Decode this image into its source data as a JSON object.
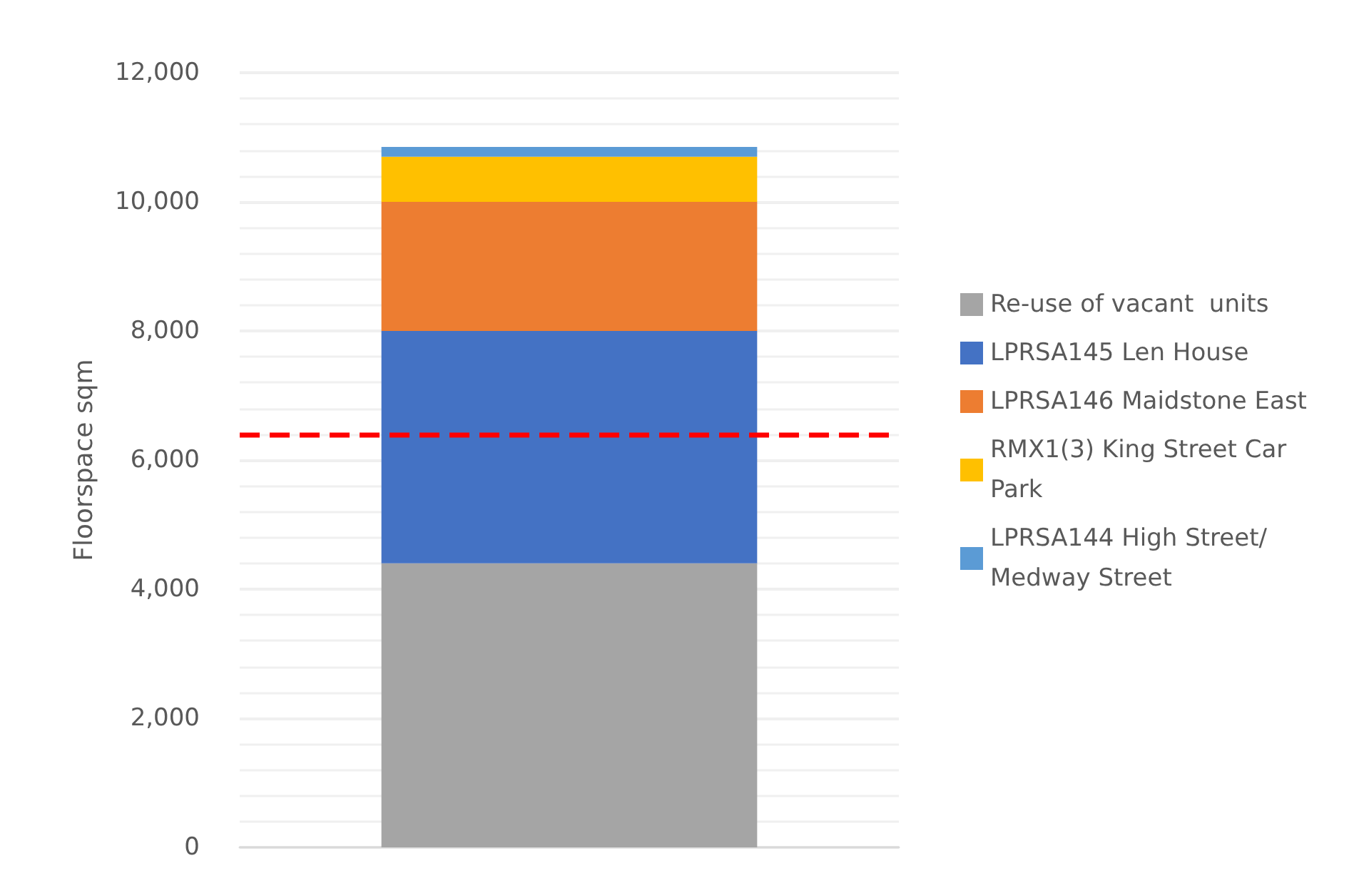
{
  "chart_data": {
    "type": "bar",
    "stacked": true,
    "ylabel": "Floorspace sqm",
    "categories": [
      null
    ],
    "series": [
      {
        "name": "Re-use of vacant  units",
        "color": "#a5a5a5",
        "values": [
          4400
        ]
      },
      {
        "name": "LPRSA145 Len House",
        "color": "#4472c4",
        "values": [
          3600
        ]
      },
      {
        "name": "LPRSA146 Maidstone East",
        "color": "#ed7d31",
        "values": [
          2000
        ]
      },
      {
        "name": "RMX1(3) King Street Car Park",
        "color": "#ffc000",
        "values": [
          700
        ]
      },
      {
        "name": "LPRSA144 High Street/Medway Street",
        "color": "#5b9bd5",
        "values": [
          150
        ]
      }
    ],
    "ylim": [
      0,
      12000
    ],
    "yticks": [
      {
        "value": 0,
        "label": "0"
      },
      {
        "value": 400,
        "label": null
      },
      {
        "value": 800,
        "label": null
      },
      {
        "value": 1200,
        "label": null
      },
      {
        "value": 1600,
        "label": null
      },
      {
        "value": 2000,
        "label": "2,000"
      },
      {
        "value": 2400,
        "label": null
      },
      {
        "value": 2800,
        "label": null
      },
      {
        "value": 3200,
        "label": null
      },
      {
        "value": 3600,
        "label": null
      },
      {
        "value": 4000,
        "label": "4,000"
      },
      {
        "value": 4400,
        "label": null
      },
      {
        "value": 4800,
        "label": null
      },
      {
        "value": 5200,
        "label": null
      },
      {
        "value": 5600,
        "label": null
      },
      {
        "value": 6000,
        "label": "6,000"
      },
      {
        "value": 6400,
        "label": null
      },
      {
        "value": 6800,
        "label": null
      },
      {
        "value": 7200,
        "label": null
      },
      {
        "value": 7600,
        "label": null
      },
      {
        "value": 8000,
        "label": "8,000"
      },
      {
        "value": 8400,
        "label": null
      },
      {
        "value": 8800,
        "label": null
      },
      {
        "value": 9200,
        "label": null
      },
      {
        "value": 9600,
        "label": null
      },
      {
        "value": 10000,
        "label": "10,000"
      },
      {
        "value": 10400,
        "label": null
      },
      {
        "value": 10800,
        "label": null
      },
      {
        "value": 11200,
        "label": null
      },
      {
        "value": 11600,
        "label": null
      },
      {
        "value": 12000,
        "label": "12,000"
      }
    ],
    "grid": "y",
    "legend": "right",
    "ref_lines": [
      {
        "axis": "y",
        "value": 6400,
        "color": "#ff0000",
        "line_style": "dashed"
      }
    ]
  }
}
